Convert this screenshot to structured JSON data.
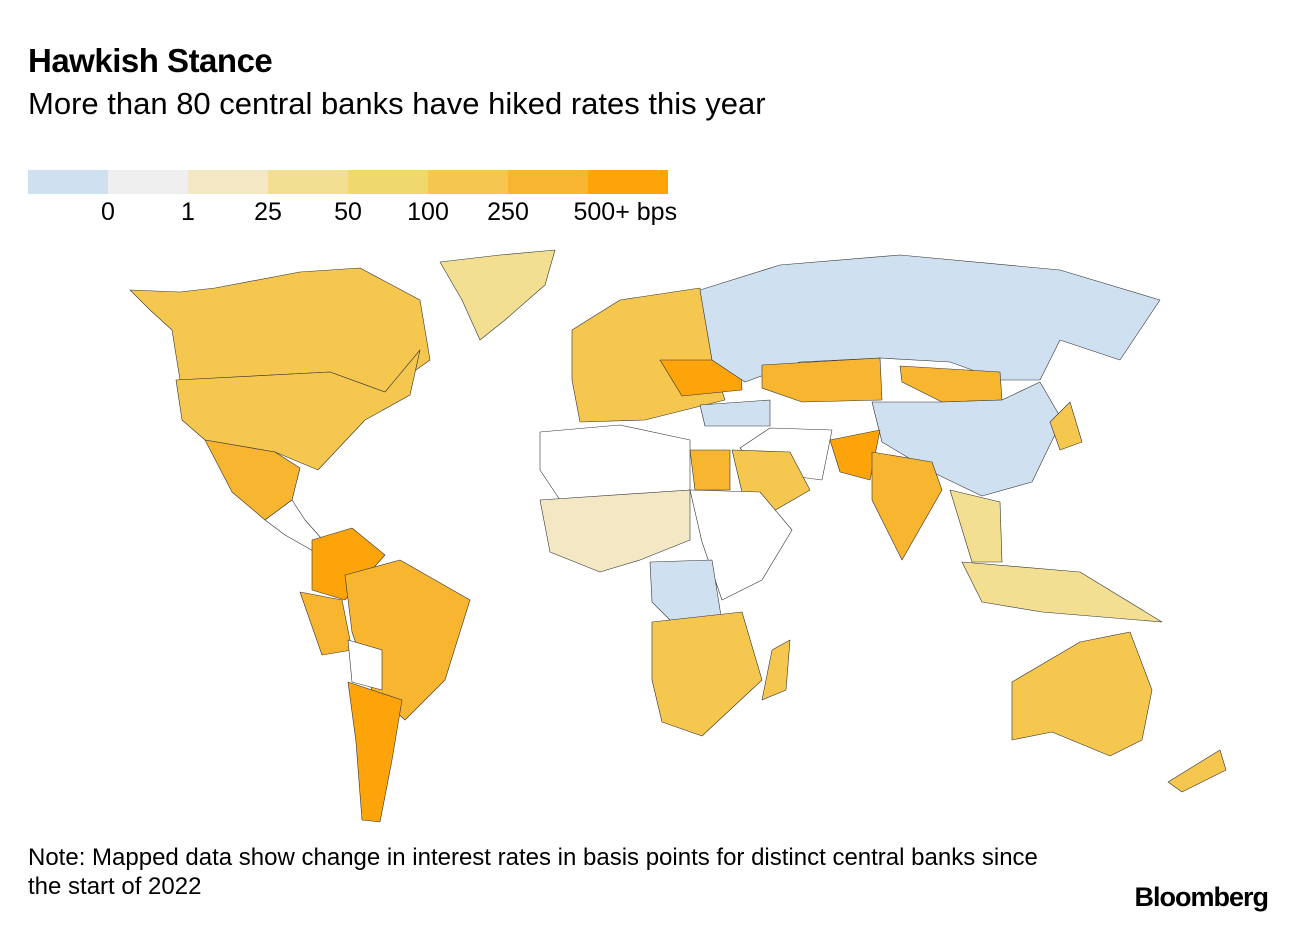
{
  "title": "Hawkish Stance",
  "subtitle": "More than 80 central banks have hiked rates this year",
  "legend": {
    "bins": [
      {
        "color": "#cfe0f1"
      },
      {
        "color": "#efefef"
      },
      {
        "color": "#f3e7c4"
      },
      {
        "color": "#f3df92"
      },
      {
        "color": "#f0d96c"
      },
      {
        "color": "#f5c74e"
      },
      {
        "color": "#f7b530"
      },
      {
        "color": "#fca40a"
      }
    ],
    "labels": [
      "0",
      "1",
      "25",
      "50",
      "100",
      "250",
      "500+ bps"
    ],
    "no_data_color": "#ffffff"
  },
  "map": {
    "regions": [
      {
        "name": "canada",
        "bin": 5
      },
      {
        "name": "greenland",
        "bin": 3
      },
      {
        "name": "united-states",
        "bin": 5
      },
      {
        "name": "mexico",
        "bin": 6
      },
      {
        "name": "central-america",
        "bin": -1
      },
      {
        "name": "colombia",
        "bin": 7
      },
      {
        "name": "brazil",
        "bin": 6
      },
      {
        "name": "peru",
        "bin": 6
      },
      {
        "name": "bolivia",
        "bin": -1
      },
      {
        "name": "argentina",
        "bin": 7
      },
      {
        "name": "europe",
        "bin": 5
      },
      {
        "name": "ukraine",
        "bin": 7
      },
      {
        "name": "russia",
        "bin": 0
      },
      {
        "name": "kazakhstan",
        "bin": 6
      },
      {
        "name": "mongolia",
        "bin": 6
      },
      {
        "name": "china",
        "bin": 0
      },
      {
        "name": "turkey",
        "bin": 0
      },
      {
        "name": "middle-east",
        "bin": -1
      },
      {
        "name": "saudi-arabia",
        "bin": 5
      },
      {
        "name": "egypt",
        "bin": 6
      },
      {
        "name": "pakistan",
        "bin": 7
      },
      {
        "name": "india",
        "bin": 6
      },
      {
        "name": "north-africa",
        "bin": -1
      },
      {
        "name": "west-africa",
        "bin": 2
      },
      {
        "name": "east-africa",
        "bin": -1
      },
      {
        "name": "dr-congo",
        "bin": 0
      },
      {
        "name": "southern-africa",
        "bin": 5
      },
      {
        "name": "madagascar",
        "bin": 5
      },
      {
        "name": "southeast-asia",
        "bin": 3
      },
      {
        "name": "indonesia",
        "bin": 3
      },
      {
        "name": "japan",
        "bin": 5
      },
      {
        "name": "australia",
        "bin": 5
      },
      {
        "name": "new-zealand",
        "bin": 5
      }
    ]
  },
  "note": "Note: Mapped data show change in interest rates in basis points for distinct central banks since the start of 2022",
  "brand": "Bloomberg"
}
